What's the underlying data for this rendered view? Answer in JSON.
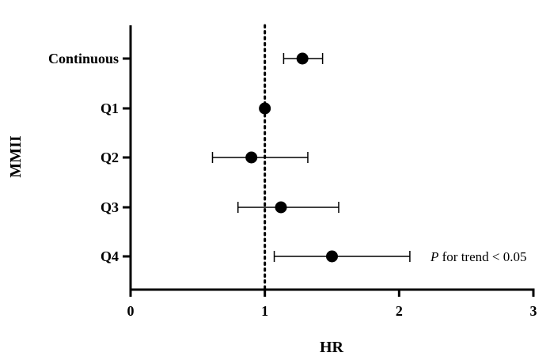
{
  "chart_data": {
    "type": "scatter",
    "subtype": "forest-plot",
    "title": "",
    "xlabel": "HR",
    "ylabel": "MMII",
    "xlim": [
      0,
      3
    ],
    "xticks": [
      "0",
      "1",
      "2",
      "3"
    ],
    "reference_line": {
      "x": 1,
      "style": "dotted"
    },
    "grid": false,
    "legend": "none",
    "marker_color": "#000000",
    "rows": [
      {
        "label": "Continuous",
        "hr": 1.28,
        "lower": 1.14,
        "upper": 1.43
      },
      {
        "label": "Q1",
        "hr": 1.0,
        "lower": 1.0,
        "upper": 1.0
      },
      {
        "label": "Q2",
        "hr": 0.9,
        "lower": 0.61,
        "upper": 1.32
      },
      {
        "label": "Q3",
        "hr": 1.12,
        "lower": 0.8,
        "upper": 1.55
      },
      {
        "label": "Q4",
        "hr": 1.5,
        "lower": 1.07,
        "upper": 2.08
      }
    ],
    "annotation": {
      "italic_part": "P",
      "rest": " for trend < 0.05",
      "row": "Q4"
    }
  }
}
